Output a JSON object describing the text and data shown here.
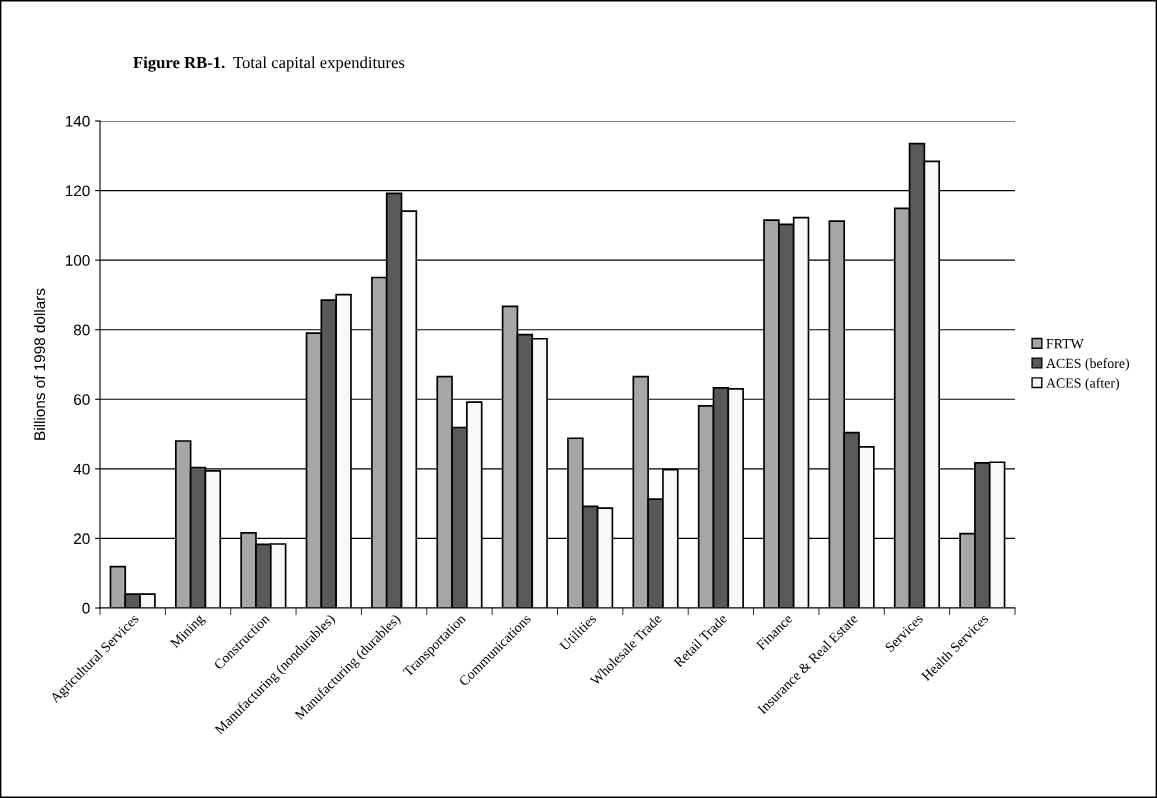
{
  "chart_data": {
    "type": "bar",
    "title": "Figure RB-1.",
    "subtitle": "Total capital expenditures",
    "ylabel": "Billions of 1998 dollars",
    "categories": [
      "Agricultural Services",
      "Mining",
      "Construction",
      "Manufacturing (nondurables)",
      "Manufacturing (durables)",
      "Transportation",
      "Communications",
      "Utilities",
      "Wholesale Trade",
      "Retail Trade",
      "Finance",
      "Insurance & Real Estate",
      "Services",
      "Health Services"
    ],
    "series": [
      {
        "name": "FRTW",
        "color": "#a6a6a6",
        "values": [
          11.9,
          48.0,
          21.6,
          79.0,
          95.0,
          66.5,
          86.7,
          48.8,
          66.5,
          58.1,
          111.5,
          111.2,
          114.9,
          21.4
        ]
      },
      {
        "name": "ACES (before)",
        "color": "#595959",
        "values": [
          4,
          40.4,
          18.3,
          88.5,
          119.2,
          51.9,
          78.6,
          29.2,
          31.3,
          63.3,
          110.3,
          50.4,
          133.5,
          41.7
        ]
      },
      {
        "name": "ACES (after)",
        "color": "#f8f8f8",
        "values": [
          4,
          39.4,
          18.4,
          90.1,
          114.1,
          59.2,
          77.4,
          28.7,
          39.8,
          63.0,
          112.2,
          46.3,
          128.4,
          41.9
        ]
      }
    ],
    "ylim": [
      0,
      140
    ],
    "yticks": [
      0,
      20,
      40,
      60,
      80,
      100,
      120,
      140
    ],
    "grid": "y",
    "legend": "right"
  }
}
